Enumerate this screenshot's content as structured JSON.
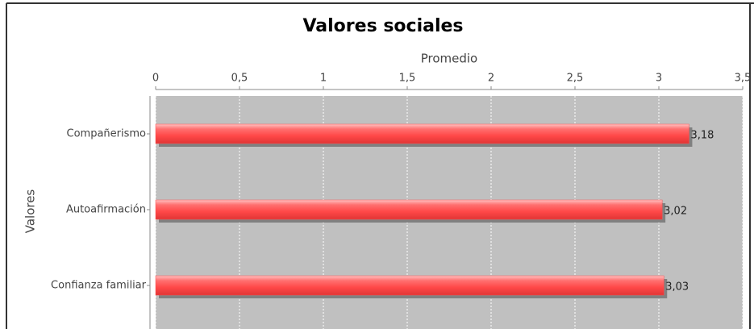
{
  "chart_data": {
    "type": "hbar",
    "title": "Valores sociales",
    "x_label": "Promedio",
    "y_label": "Valores",
    "categories": [
      "Compañerismo",
      "Autoafirmación",
      "Confianza familiar"
    ],
    "values": [
      3.18,
      3.02,
      3.03
    ],
    "value_labels": [
      "3,18",
      "3,02",
      "3,03"
    ],
    "color": "#ff5050",
    "xlim": [
      0,
      3.5
    ],
    "xticks": [
      0,
      {
        "value": 0.5,
        "label": "0,5"
      },
      1,
      {
        "value": 1.5,
        "label": "1,5"
      },
      2,
      {
        "value": 2.5,
        "label": "2,5"
      },
      3,
      {
        "value": 3.5,
        "label": "3,5"
      }
    ],
    "grid": true
  }
}
